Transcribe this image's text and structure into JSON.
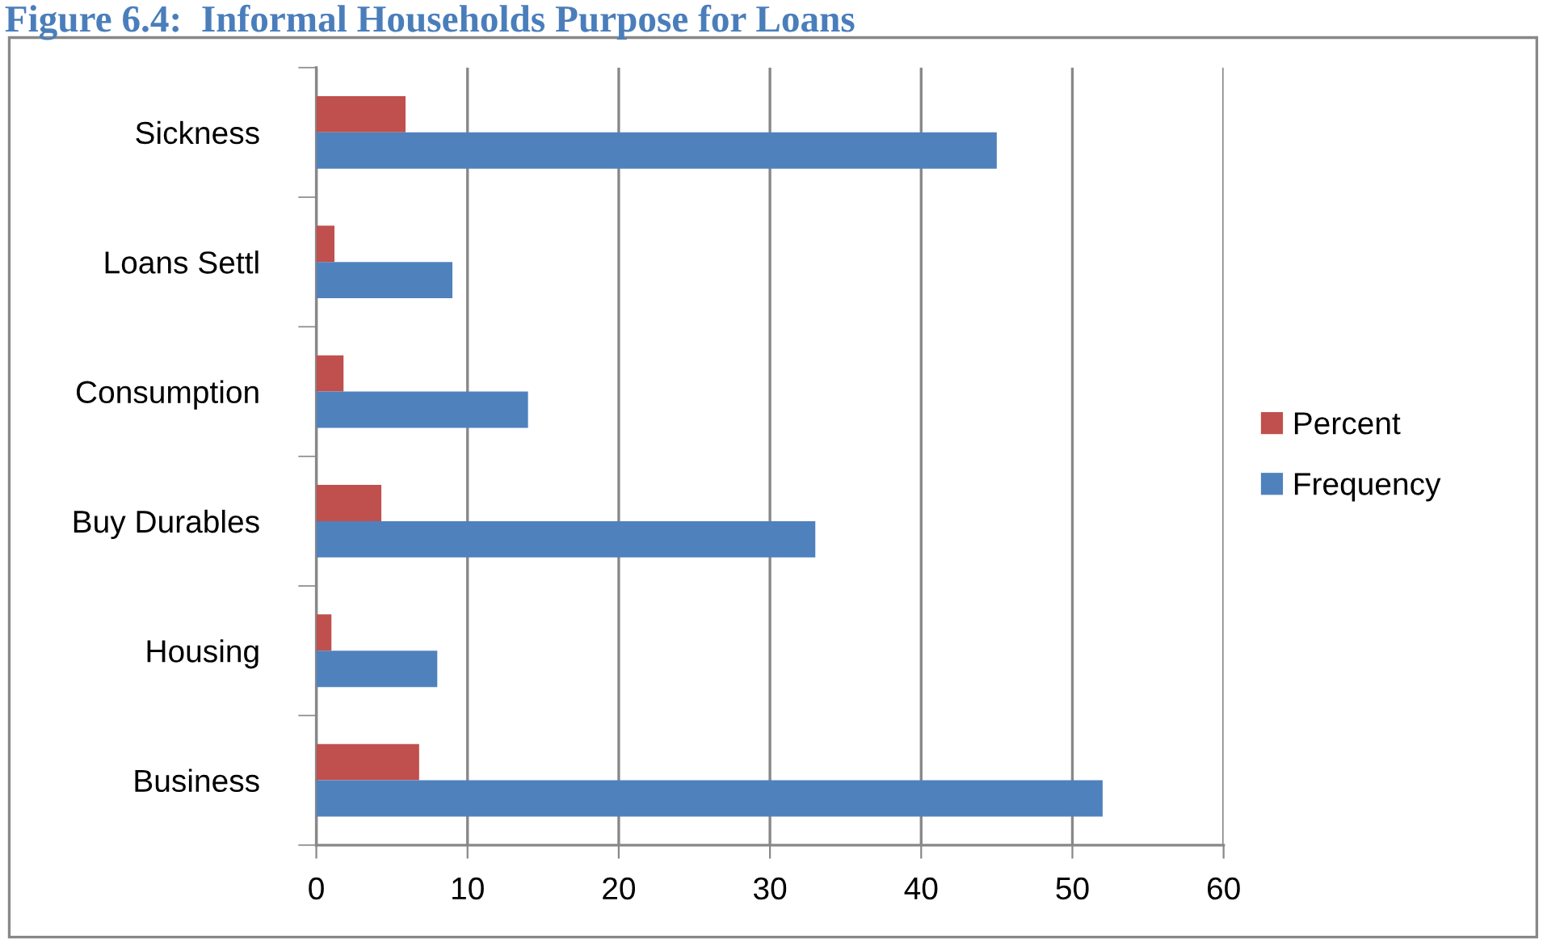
{
  "chart_data": {
    "type": "bar",
    "orientation": "horizontal",
    "title": "Figure 6.4:  Informal Households Purpose for Loans",
    "categories": [
      "Sickness",
      "Loans Settl",
      "Consumption",
      "Buy Durables",
      "Housing",
      "Business"
    ],
    "series": [
      {
        "name": "Percent",
        "color": "#c0504d",
        "values": [
          5.9,
          1.2,
          1.8,
          4.3,
          1.0,
          6.8
        ]
      },
      {
        "name": "Frequency",
        "color": "#4f81bd",
        "values": [
          45,
          9,
          14,
          33,
          8,
          52
        ]
      }
    ],
    "xlim": [
      0,
      60
    ],
    "xticks": [
      0,
      10,
      20,
      30,
      40,
      50,
      60
    ],
    "grid": "x",
    "legend": "right"
  }
}
